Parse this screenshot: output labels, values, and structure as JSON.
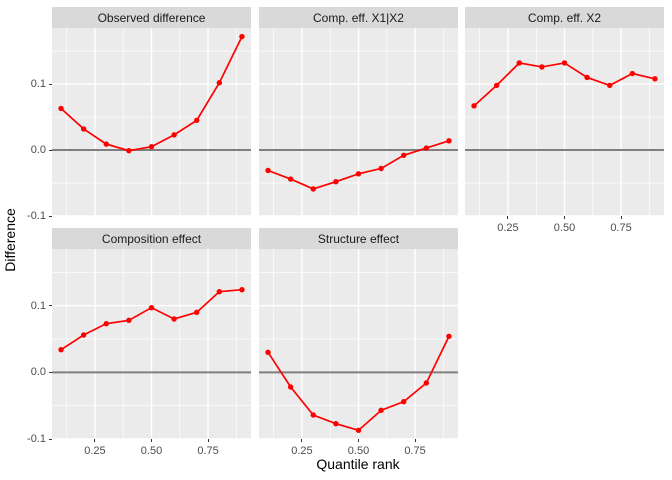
{
  "chart_data": {
    "type": "line",
    "title": "",
    "xlabel": "Quantile rank",
    "ylabel": "Difference",
    "x": [
      0.1,
      0.2,
      0.3,
      0.4,
      0.5,
      0.6,
      0.7,
      0.8,
      0.9
    ],
    "xlim": [
      0.06,
      0.94
    ],
    "ylim": [
      -0.1,
      0.185
    ],
    "x_ticks": [
      "0.25",
      "0.50",
      "0.75"
    ],
    "x_tick_values": [
      0.25,
      0.5,
      0.75
    ],
    "y_ticks": [
      "0.1",
      "0.0",
      "-0.1"
    ],
    "y_tick_values": [
      0.1,
      0.0,
      -0.1
    ],
    "x_minor": [
      0.125,
      0.375,
      0.625,
      0.875
    ],
    "y_minor": [
      -0.05,
      0.05,
      0.15
    ],
    "hline_y": 0,
    "grid": "on",
    "facets": [
      {
        "title": "Observed difference",
        "row": 0,
        "col": 0,
        "x_axis": false,
        "values": [
          0.063,
          0.032,
          0.009,
          -0.001,
          0.005,
          0.023,
          0.045,
          0.102,
          0.172
        ]
      },
      {
        "title": "Comp. eff. X1|X2",
        "row": 0,
        "col": 1,
        "x_axis": false,
        "values": [
          -0.031,
          -0.044,
          -0.059,
          -0.048,
          -0.036,
          -0.028,
          -0.008,
          0.003,
          0.014
        ]
      },
      {
        "title": "Comp. eff. X2",
        "row": 0,
        "col": 2,
        "x_axis": true,
        "values": [
          0.067,
          0.098,
          0.132,
          0.126,
          0.132,
          0.11,
          0.098,
          0.116,
          0.108
        ]
      },
      {
        "title": "Composition effect",
        "row": 1,
        "col": 0,
        "x_axis": true,
        "values": [
          0.034,
          0.056,
          0.073,
          0.078,
          0.097,
          0.08,
          0.09,
          0.121,
          0.124
        ]
      },
      {
        "title": "Structure effect",
        "row": 1,
        "col": 1,
        "x_axis": true,
        "values": [
          0.03,
          -0.022,
          -0.064,
          -0.077,
          -0.087,
          -0.057,
          -0.044,
          -0.016,
          0.054
        ]
      }
    ],
    "colors": {
      "line": "#ff0000",
      "panel_bg": "#ebebeb",
      "strip_bg": "#d9d9d9",
      "grid": "#ffffff",
      "hline": "#7f7f7f",
      "tick_text": "#4d4d4d",
      "title_text": "#000000"
    }
  }
}
